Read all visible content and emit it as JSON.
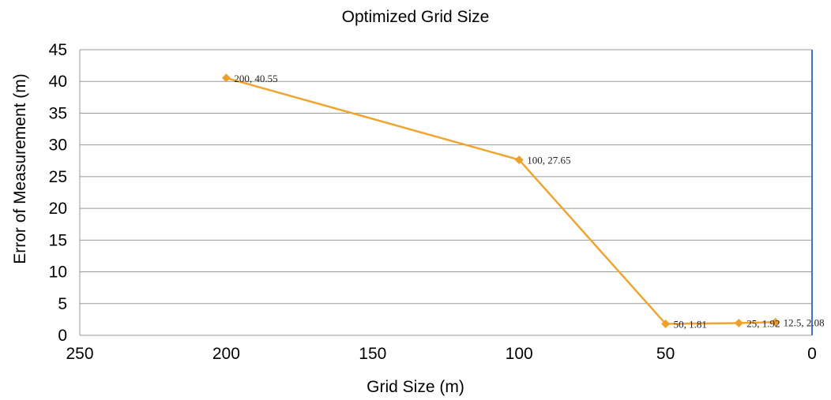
{
  "chart_data": {
    "type": "line",
    "title": "Optimized Grid Size",
    "xlabel": "Grid Size (m)",
    "ylabel": "Error of Measurement  (m)",
    "xlim": [
      250,
      0
    ],
    "x_reversed": true,
    "ylim": [
      0,
      45
    ],
    "x_ticks": [
      "250",
      "200",
      "150",
      "100",
      "50",
      "0"
    ],
    "y_ticks": [
      "0",
      "5",
      "10",
      "15",
      "20",
      "25",
      "30",
      "35",
      "40",
      "45"
    ],
    "grid": "horizontal",
    "colors": {
      "series": "#f0a531",
      "marker": "#eea02c",
      "zero_line": "#3c78c0",
      "grid": "#9a9a9a"
    },
    "series": [
      {
        "x": [
          200,
          100,
          50,
          25,
          12.5
        ],
        "y": [
          40.55,
          27.65,
          1.81,
          1.92,
          2.08
        ],
        "labels": [
          "200, 40.55",
          "100, 27.65",
          "50, 1.81",
          "25, 1.92",
          "12.5, 2.08"
        ],
        "marker": "diamond"
      }
    ]
  }
}
